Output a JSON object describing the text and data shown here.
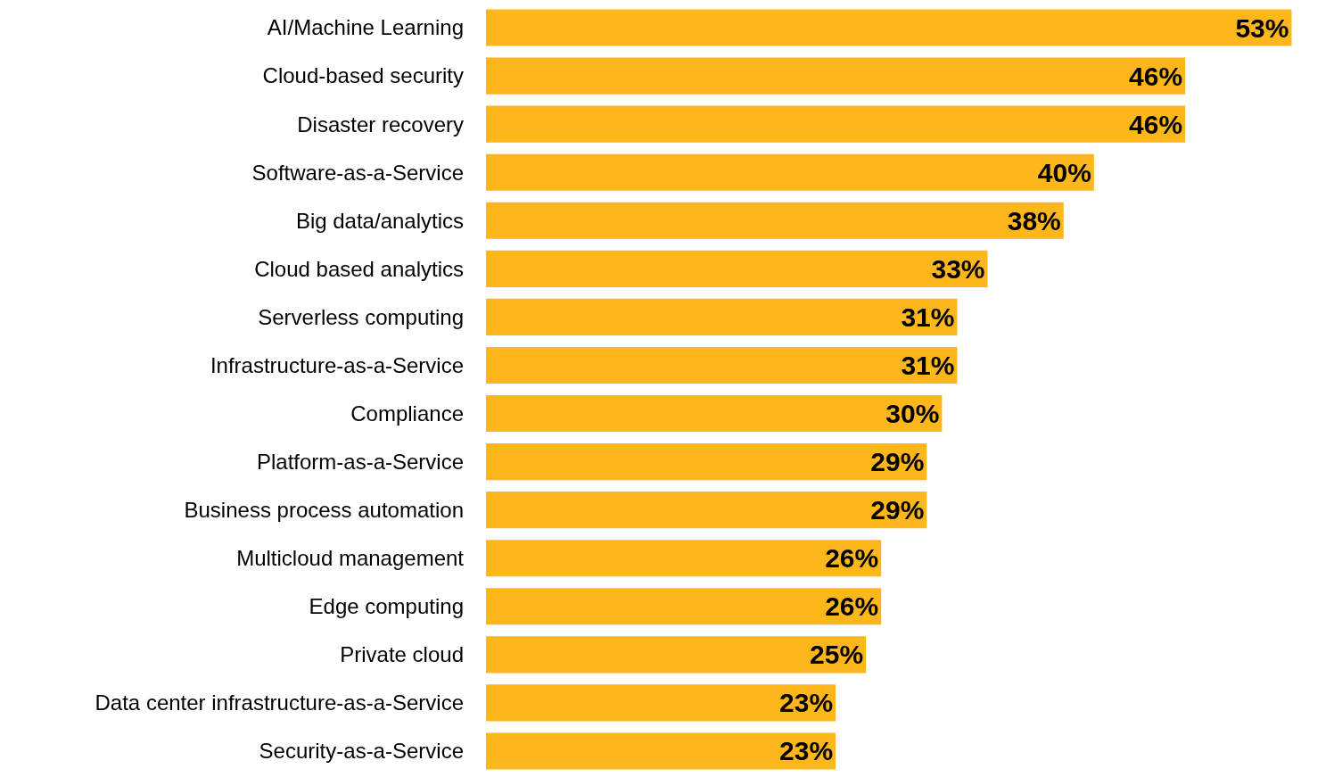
{
  "chart_data": {
    "type": "bar",
    "orientation": "horizontal",
    "categories": [
      "AI/Machine Learning",
      "Cloud-based security",
      "Disaster recovery",
      "Software-as-a-Service",
      "Big data/analytics",
      "Cloud based analytics",
      "Serverless computing",
      "Infrastructure-as-a-Service",
      "Compliance",
      "Platform-as-a-Service",
      "Business process automation",
      "Multicloud management",
      "Edge computing",
      "Private cloud",
      "Data center infrastructure-as-a-Service",
      "Security-as-a-Service"
    ],
    "values": [
      53,
      46,
      46,
      40,
      38,
      33,
      31,
      31,
      30,
      29,
      29,
      26,
      26,
      25,
      23,
      23
    ],
    "value_labels": [
      "53%",
      "46%",
      "46%",
      "40%",
      "38%",
      "33%",
      "31%",
      "31%",
      "30%",
      "29%",
      "29%",
      "26%",
      "26%",
      "25%",
      "23%",
      "23%"
    ],
    "color": "#fdb71a",
    "tick_labels": "y",
    "grid": false
  }
}
